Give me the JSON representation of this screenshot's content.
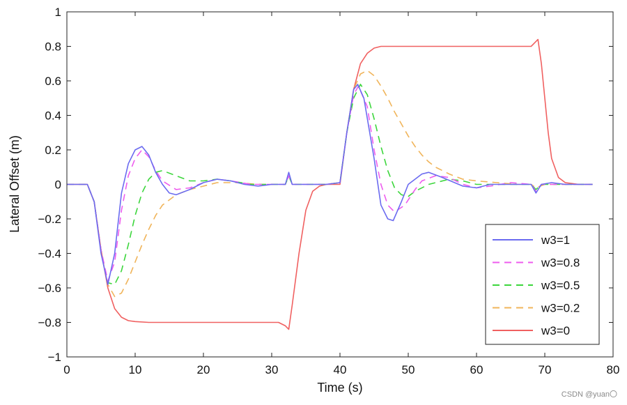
{
  "chart_data": {
    "type": "line",
    "title": "",
    "xlabel": "Time (s)",
    "ylabel": "Lateral Offset (m)",
    "xlim": [
      0,
      80
    ],
    "ylim": [
      -1,
      1
    ],
    "xticks": [
      0,
      10,
      20,
      30,
      40,
      50,
      60,
      70,
      80
    ],
    "yticks": [
      1,
      0.8,
      0.6,
      0.4,
      0.2,
      0,
      -0.2,
      -0.4,
      -0.6,
      -0.8,
      -1
    ],
    "xtick_labels": [
      "0",
      "10",
      "20",
      "30",
      "40",
      "50",
      "60",
      "70",
      "80"
    ],
    "ytick_labels": [
      "1",
      "0.8",
      "0.6",
      "0.4",
      "0.2",
      "0",
      "−0.2",
      "−0.4",
      "−0.6",
      "−0.8",
      "−1"
    ],
    "grid": false,
    "legend_position": "lower-right",
    "series": [
      {
        "name": "w3=1",
        "color": "#6b6bf0",
        "dash": "solid",
        "points": [
          [
            0,
            0
          ],
          [
            3,
            0
          ],
          [
            4,
            -0.1
          ],
          [
            5,
            -0.4
          ],
          [
            6,
            -0.58
          ],
          [
            7,
            -0.4
          ],
          [
            8,
            -0.05
          ],
          [
            9,
            0.12
          ],
          [
            10,
            0.2
          ],
          [
            11,
            0.22
          ],
          [
            12,
            0.17
          ],
          [
            13,
            0.07
          ],
          [
            14,
            0
          ],
          [
            15,
            -0.05
          ],
          [
            16,
            -0.06
          ],
          [
            18,
            -0.03
          ],
          [
            20,
            0.01
          ],
          [
            22,
            0.03
          ],
          [
            24,
            0.02
          ],
          [
            26,
            0
          ],
          [
            28,
            -0.01
          ],
          [
            30,
            0
          ],
          [
            32,
            0
          ],
          [
            32.5,
            0.07
          ],
          [
            33,
            0
          ],
          [
            34,
            0
          ],
          [
            38,
            0
          ],
          [
            40,
            0.01
          ],
          [
            41,
            0.3
          ],
          [
            42,
            0.55
          ],
          [
            42.6,
            0.58
          ],
          [
            43.5,
            0.5
          ],
          [
            45,
            0.15
          ],
          [
            46,
            -0.12
          ],
          [
            47,
            -0.2
          ],
          [
            47.8,
            -0.21
          ],
          [
            49,
            -0.1
          ],
          [
            50,
            0
          ],
          [
            52,
            0.06
          ],
          [
            53,
            0.07
          ],
          [
            55,
            0.04
          ],
          [
            58,
            -0.01
          ],
          [
            60,
            -0.02
          ],
          [
            62,
            0
          ],
          [
            65,
            0
          ],
          [
            68,
            0
          ],
          [
            68.7,
            -0.05
          ],
          [
            69.5,
            0
          ],
          [
            71,
            0.01
          ],
          [
            73,
            0
          ],
          [
            77,
            0
          ]
        ]
      },
      {
        "name": "w3=0.8",
        "color": "#ee5cee",
        "dash": "10,7",
        "points": [
          [
            0,
            0
          ],
          [
            3,
            0
          ],
          [
            4,
            -0.1
          ],
          [
            5,
            -0.38
          ],
          [
            6,
            -0.56
          ],
          [
            7,
            -0.45
          ],
          [
            8,
            -0.15
          ],
          [
            9,
            0.05
          ],
          [
            10,
            0.15
          ],
          [
            11,
            0.2
          ],
          [
            12,
            0.16
          ],
          [
            13,
            0.08
          ],
          [
            14,
            0.02
          ],
          [
            16,
            -0.03
          ],
          [
            18,
            -0.02
          ],
          [
            20,
            0.01
          ],
          [
            22,
            0.03
          ],
          [
            24,
            0.02
          ],
          [
            27,
            0
          ],
          [
            30,
            0
          ],
          [
            32,
            0
          ],
          [
            32.5,
            0.05
          ],
          [
            33,
            0
          ],
          [
            38,
            0
          ],
          [
            40,
            0.01
          ],
          [
            41,
            0.3
          ],
          [
            42,
            0.52
          ],
          [
            42.7,
            0.57
          ],
          [
            44,
            0.45
          ],
          [
            45,
            0.2
          ],
          [
            46,
            0
          ],
          [
            47,
            -0.12
          ],
          [
            48,
            -0.16
          ],
          [
            49.5,
            -0.12
          ],
          [
            51,
            -0.03
          ],
          [
            52,
            0.02
          ],
          [
            54,
            0.05
          ],
          [
            56,
            0.04
          ],
          [
            58,
            0
          ],
          [
            60,
            -0.02
          ],
          [
            62,
            -0.01
          ],
          [
            65,
            0.01
          ],
          [
            68,
            0
          ],
          [
            68.7,
            -0.04
          ],
          [
            69.5,
            0
          ],
          [
            72,
            0
          ],
          [
            77,
            0
          ]
        ]
      },
      {
        "name": "w3=0.5",
        "color": "#3cd63c",
        "dash": "10,7",
        "points": [
          [
            0,
            0
          ],
          [
            3,
            0
          ],
          [
            4,
            -0.1
          ],
          [
            5,
            -0.38
          ],
          [
            6,
            -0.57
          ],
          [
            7,
            -0.58
          ],
          [
            8,
            -0.5
          ],
          [
            9,
            -0.35
          ],
          [
            10,
            -0.18
          ],
          [
            11,
            -0.05
          ],
          [
            12,
            0.03
          ],
          [
            13,
            0.07
          ],
          [
            14,
            0.08
          ],
          [
            16,
            0.05
          ],
          [
            18,
            0.02
          ],
          [
            20,
            0.02
          ],
          [
            22,
            0.03
          ],
          [
            24,
            0.02
          ],
          [
            27,
            0
          ],
          [
            30,
            0
          ],
          [
            32,
            0
          ],
          [
            32.5,
            0.05
          ],
          [
            33,
            0
          ],
          [
            38,
            0
          ],
          [
            40,
            0.01
          ],
          [
            41,
            0.3
          ],
          [
            42,
            0.5
          ],
          [
            43,
            0.58
          ],
          [
            44,
            0.52
          ],
          [
            45,
            0.38
          ],
          [
            46,
            0.22
          ],
          [
            47,
            0.08
          ],
          [
            48,
            -0.02
          ],
          [
            49,
            -0.06
          ],
          [
            50,
            -0.07
          ],
          [
            51,
            -0.04
          ],
          [
            53,
            0
          ],
          [
            56,
            0.03
          ],
          [
            58,
            0.02
          ],
          [
            60,
            0
          ],
          [
            63,
            0
          ],
          [
            66,
            0
          ],
          [
            68,
            0
          ],
          [
            68.7,
            -0.03
          ],
          [
            69.5,
            0
          ],
          [
            72,
            0
          ],
          [
            77,
            0
          ]
        ]
      },
      {
        "name": "w3=0.2",
        "color": "#f0b45a",
        "dash": "10,7",
        "points": [
          [
            0,
            0
          ],
          [
            3,
            0
          ],
          [
            4,
            -0.1
          ],
          [
            5,
            -0.38
          ],
          [
            6,
            -0.58
          ],
          [
            7,
            -0.65
          ],
          [
            8,
            -0.63
          ],
          [
            9,
            -0.55
          ],
          [
            10,
            -0.45
          ],
          [
            11,
            -0.35
          ],
          [
            12,
            -0.26
          ],
          [
            13,
            -0.18
          ],
          [
            14,
            -0.12
          ],
          [
            16,
            -0.06
          ],
          [
            18,
            -0.03
          ],
          [
            20,
            -0.01
          ],
          [
            22,
            0.01
          ],
          [
            25,
            0.01
          ],
          [
            28,
            0
          ],
          [
            30,
            0
          ],
          [
            32,
            0
          ],
          [
            32.5,
            0.05
          ],
          [
            33,
            0
          ],
          [
            38,
            0
          ],
          [
            40,
            0.01
          ],
          [
            41,
            0.3
          ],
          [
            42,
            0.55
          ],
          [
            43,
            0.64
          ],
          [
            44,
            0.66
          ],
          [
            45,
            0.63
          ],
          [
            46,
            0.57
          ],
          [
            47,
            0.5
          ],
          [
            48,
            0.42
          ],
          [
            49,
            0.35
          ],
          [
            50,
            0.28
          ],
          [
            51,
            0.22
          ],
          [
            52,
            0.17
          ],
          [
            53,
            0.13
          ],
          [
            54,
            0.1
          ],
          [
            56,
            0.06
          ],
          [
            58,
            0.03
          ],
          [
            60,
            0.02
          ],
          [
            63,
            0.01
          ],
          [
            66,
            0
          ],
          [
            68,
            0
          ],
          [
            68.7,
            -0.02
          ],
          [
            70,
            0
          ],
          [
            72,
            0
          ],
          [
            77,
            0
          ]
        ]
      },
      {
        "name": "w3=0",
        "color": "#f06060",
        "dash": "solid",
        "points": [
          [
            0,
            0
          ],
          [
            3,
            0
          ],
          [
            4,
            -0.1
          ],
          [
            5,
            -0.38
          ],
          [
            6,
            -0.6
          ],
          [
            7,
            -0.72
          ],
          [
            8,
            -0.77
          ],
          [
            9,
            -0.79
          ],
          [
            10,
            -0.795
          ],
          [
            12,
            -0.8
          ],
          [
            20,
            -0.8
          ],
          [
            30,
            -0.8
          ],
          [
            31,
            -0.8
          ],
          [
            32,
            -0.82
          ],
          [
            32.5,
            -0.84
          ],
          [
            33,
            -0.7
          ],
          [
            34,
            -0.4
          ],
          [
            35,
            -0.15
          ],
          [
            36,
            -0.04
          ],
          [
            37,
            -0.01
          ],
          [
            38,
            0
          ],
          [
            40,
            0
          ],
          [
            41,
            0.3
          ],
          [
            42,
            0.55
          ],
          [
            43,
            0.7
          ],
          [
            44,
            0.76
          ],
          [
            45,
            0.79
          ],
          [
            46,
            0.8
          ],
          [
            50,
            0.8
          ],
          [
            60,
            0.8
          ],
          [
            68,
            0.8
          ],
          [
            68.5,
            0.82
          ],
          [
            69,
            0.84
          ],
          [
            69.5,
            0.7
          ],
          [
            70,
            0.5
          ],
          [
            70.5,
            0.3
          ],
          [
            71,
            0.15
          ],
          [
            72,
            0.04
          ],
          [
            73,
            0.01
          ],
          [
            75,
            0
          ],
          [
            77,
            0
          ]
        ]
      }
    ]
  },
  "watermark": "CSDN @yuan〇"
}
